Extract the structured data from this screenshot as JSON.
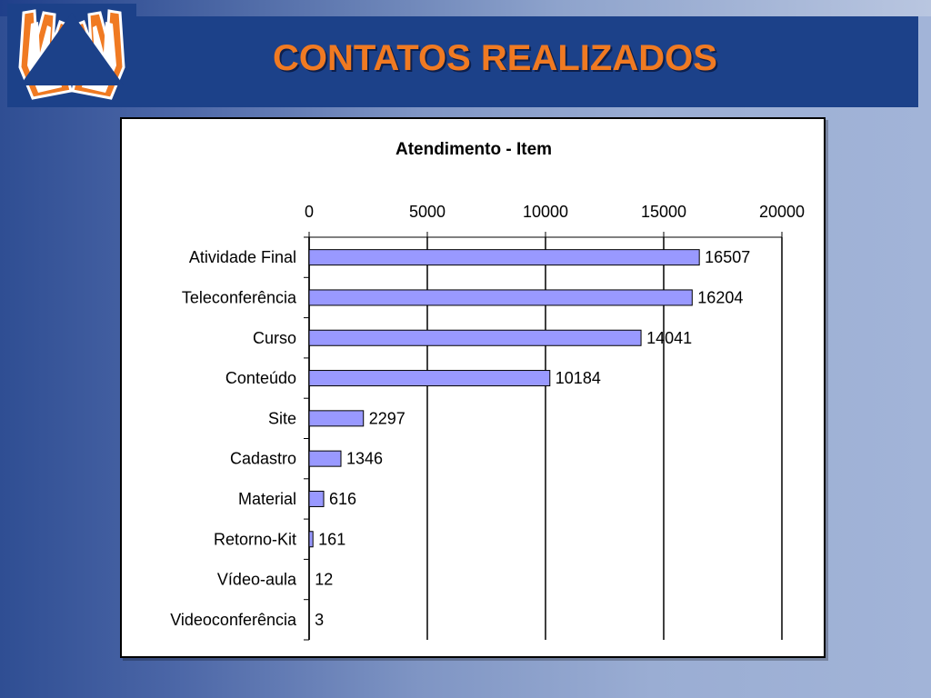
{
  "slide": {
    "title": "CONTATOS REALIZADOS",
    "colors": {
      "title": "#f07a22",
      "header_band": "#1c4189",
      "logo_hands": "#f07a22"
    }
  },
  "logo": {
    "icon": "hands-triangle-logo-icon"
  },
  "chart_data": {
    "type": "bar",
    "orientation": "horizontal",
    "title": "Atendimento - Item",
    "categories": [
      "Atividade Final",
      "Teleconferência",
      "Curso",
      "Conteúdo",
      "Site",
      "Cadastro",
      "Material",
      "Retorno-Kit",
      "Vídeo-aula",
      "Videoconferência"
    ],
    "values": [
      16507,
      16204,
      14041,
      10184,
      2297,
      1346,
      616,
      161,
      12,
      3
    ],
    "xlim": [
      0,
      20000
    ],
    "xticks": [
      0,
      5000,
      10000,
      15000,
      20000
    ],
    "x_axis_position": "top",
    "grid": "vertical",
    "legend": "none",
    "bar_color": "#9999ff"
  }
}
